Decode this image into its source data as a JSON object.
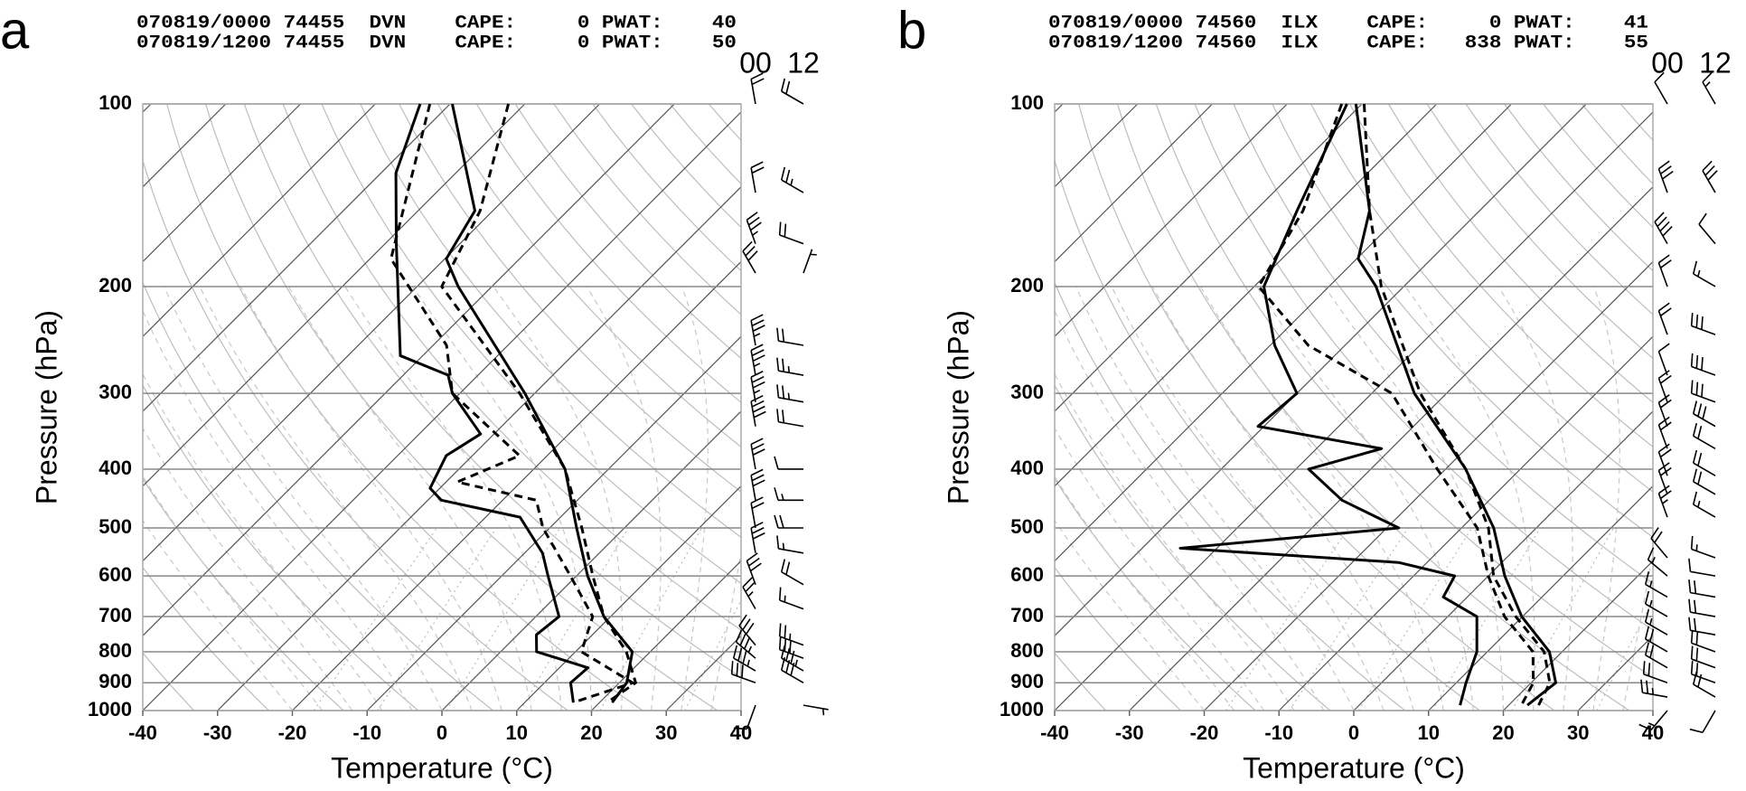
{
  "chart_data": [
    {
      "type": "skewt",
      "label": "a",
      "header": [
        "070819/0000 74455  DVN    CAPE:     0 PWAT:    40",
        "070819/1200 74455  DVN    CAPE:     0 PWAT:    50"
      ],
      "xlabel": "Temperature (°C)",
      "ylabel": "Pressure (hPa)",
      "xlim": [
        -40,
        40
      ],
      "xticks": [
        -40,
        -30,
        -20,
        -10,
        0,
        10,
        20,
        30,
        40
      ],
      "ylim": [
        1000,
        100
      ],
      "yticks": [
        100,
        200,
        300,
        400,
        500,
        600,
        700,
        800,
        900,
        1000
      ],
      "log_y": true,
      "series": [
        {
          "pressure": [
            100,
            150,
            180,
            200,
            300,
            400,
            500,
            600,
            700,
            800,
            900,
            970
          ],
          "values": [
            -79.7,
            -62.4,
            -59.8,
            -54.5,
            -31.3,
            -15.8,
            -6.4,
            1.5,
            9.1,
            17.6,
            21,
            21.7
          ],
          "color": "#000000",
          "style": "solid"
        },
        {
          "pressure": [
            100,
            130,
            170,
            260,
            280,
            300,
            350,
            380,
            430,
            450,
            480,
            550,
            600,
            700,
            750,
            800,
            850,
            900,
            970
          ],
          "values": [
            -84,
            -78,
            -68.5,
            -53,
            -44,
            -41,
            -31.8,
            -33.5,
            -31.3,
            -28.2,
            -15.4,
            -7.6,
            -3.8,
            3.1,
            2.5,
            4.8,
            13.8,
            13.5,
            16.5
          ],
          "color": "#000000",
          "style": "solid"
        },
        {
          "pressure": [
            100,
            150,
            200,
            300,
            400,
            500,
            600,
            700,
            800,
            900,
            970
          ],
          "values": [
            -72.2,
            -61.7,
            -56.7,
            -32,
            -15.8,
            -5.7,
            2.2,
            9.1,
            16.8,
            22.2,
            21
          ],
          "color": "#000000",
          "style": "dashed"
        },
        {
          "pressure": [
            100,
            180,
            250,
            300,
            380,
            420,
            450,
            500,
            600,
            700,
            800,
            900,
            970
          ],
          "values": [
            -82.7,
            -67.2,
            -48.2,
            -41,
            -23.7,
            -28.5,
            -15.5,
            -10.9,
            -0.8,
            7.6,
            10.8,
            21.8,
            16.5
          ],
          "color": "#000000",
          "style": "dashed"
        }
      ],
      "winds": {
        "pressure": [
          100,
          140,
          170,
          190,
          250,
          280,
          310,
          340,
          400,
          450,
          500,
          550,
          620,
          680,
          780,
          820,
          860,
          900,
          980
        ],
        "series": [
          {
            "name": "00",
            "values": [
              20,
              20,
              35,
              30,
              35,
              35,
              35,
              40,
              30,
              30,
              20,
              30,
              30,
              25,
              30,
              35,
              35,
              30,
              10
            ],
            "direction": [
              350,
              350,
              340,
              330,
              350,
              350,
              350,
              350,
              350,
              350,
              350,
              350,
              340,
              330,
              320,
              310,
              300,
              290,
              200
            ]
          },
          {
            "name": "12",
            "values": [
              20,
              25,
              20,
              5,
              20,
              25,
              25,
              20,
              10,
              15,
              20,
              15,
              20,
              15,
              25,
              30,
              35,
              30,
              5
            ],
            "direction": [
              300,
              300,
              290,
              20,
              280,
              280,
              280,
              280,
              270,
              270,
              270,
              280,
              300,
              290,
              290,
              290,
              300,
              300,
              100
            ]
          }
        ]
      }
    },
    {
      "type": "skewt",
      "label": "b",
      "header": [
        "070819/0000 74560  ILX    CAPE:     0 PWAT:    41",
        "070819/1200 74560  ILX    CAPE:   838 PWAT:    55"
      ],
      "xlabel": "Temperature (°C)",
      "ylabel": "Pressure (hPa)",
      "xlim": [
        -40,
        40
      ],
      "xticks": [
        -40,
        -30,
        -20,
        -10,
        0,
        10,
        20,
        30,
        40
      ],
      "ylim": [
        1000,
        100
      ],
      "yticks": [
        100,
        200,
        300,
        400,
        500,
        600,
        700,
        800,
        900,
        1000
      ],
      "log_y": true,
      "series": [
        {
          "pressure": [
            100,
            150,
            180,
            200,
            300,
            400,
            500,
            600,
            700,
            800,
            900,
            980
          ],
          "values": [
            -80.8,
            -64.7,
            -59.8,
            -53.7,
            -34.3,
            -17.3,
            -5.7,
            2.2,
            9.9,
            18.3,
            23.3,
            22.5
          ],
          "color": "#000000",
          "style": "solid"
        },
        {
          "pressure": [
            100,
            150,
            200,
            250,
            300,
            340,
            370,
            400,
            450,
            500,
            540,
            570,
            600,
            650,
            700,
            800,
            900,
            980
          ],
          "values": [
            -82,
            -74.4,
            -68.7,
            -59.4,
            -50,
            -50.8,
            -31.3,
            -38.3,
            -29.7,
            -18.4,
            -44.9,
            -13.8,
            -4.5,
            -3.2,
            3.9,
            8.6,
            11.3,
            13.5
          ],
          "color": "#000000",
          "style": "solid"
        },
        {
          "pressure": [
            100,
            150,
            200,
            300,
            400,
            500,
            600,
            700,
            800,
            900,
            980
          ],
          "values": [
            -79.7,
            -64.7,
            -53,
            -33.5,
            -17.3,
            -6.4,
            0.7,
            9.1,
            17.6,
            22.5,
            24
          ],
          "color": "#000000",
          "style": "dashed"
        },
        {
          "pressure": [
            100,
            150,
            200,
            250,
            300,
            400,
            500,
            600,
            700,
            800,
            900,
            980
          ],
          "values": [
            -82.7,
            -73.6,
            -69.4,
            -54.9,
            -37.3,
            -21.1,
            -7.9,
            0,
            7.6,
            16.1,
            20.3,
            21.7
          ],
          "color": "#000000",
          "style": "dashed"
        }
      ],
      "winds": {
        "pressure": [
          100,
          140,
          170,
          200,
          240,
          280,
          310,
          340,
          370,
          410,
          440,
          480,
          560,
          600,
          650,
          700,
          750,
          800,
          850,
          900,
          950,
          1000
        ],
        "series": [
          {
            "name": "00",
            "values": [
              10,
              30,
              40,
              20,
              20,
              10,
              20,
              20,
              20,
              20,
              20,
              25,
              20,
              15,
              15,
              15,
              15,
              20,
              20,
              20,
              25,
              15
            ],
            "direction": [
              330,
              340,
              330,
              340,
              340,
              340,
              340,
              340,
              340,
              340,
              340,
              340,
              320,
              310,
              300,
              300,
              300,
              300,
              300,
              290,
              280,
              220
            ]
          },
          {
            "name": "12",
            "values": [
              15,
              30,
              10,
              15,
              30,
              30,
              30,
              30,
              20,
              20,
              20,
              15,
              15,
              10,
              20,
              20,
              20,
              20,
              20,
              20,
              20,
              10
            ],
            "direction": [
              330,
              330,
              320,
              300,
              290,
              290,
              290,
              300,
              300,
              300,
              300,
              300,
              290,
              280,
              280,
              280,
              280,
              290,
              290,
              290,
              300,
              210
            ]
          }
        ]
      }
    }
  ]
}
